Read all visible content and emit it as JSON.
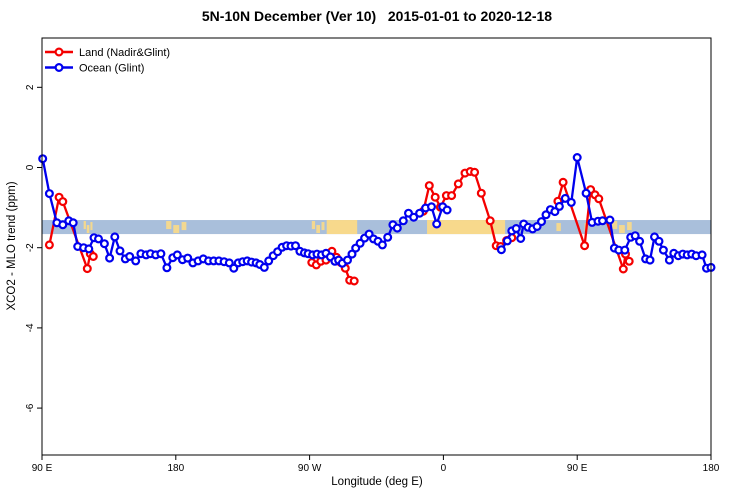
{
  "chart_data": {
    "type": "line",
    "title": "5N-10N December (Ver 10)   2015-01-01 to 2020-12-18",
    "xlabel": "Longitude (deg E)",
    "ylabel": "XCO2 - MLO trend (ppm)",
    "xlim": [
      90,
      540
    ],
    "ylim": [
      -7.17,
      3.23
    ],
    "grid": false,
    "legend_position": "top-left",
    "x_ticks": [
      {
        "pos": 90,
        "label": "90 E"
      },
      {
        "pos": 180,
        "label": "180"
      },
      {
        "pos": 270,
        "label": "90 W"
      },
      {
        "pos": 360,
        "label": "0"
      },
      {
        "pos": 450,
        "label": "90 E"
      },
      {
        "pos": 540,
        "label": "180"
      }
    ],
    "y_ticks": [
      {
        "pos": 2,
        "label": "2"
      },
      {
        "pos": 0,
        "label": "0"
      },
      {
        "pos": -2,
        "label": "-2"
      },
      {
        "pos": -4,
        "label": "-4"
      },
      {
        "pos": -6,
        "label": "-6"
      }
    ],
    "reference_band": {
      "from": -1.31,
      "to": -1.66,
      "ocean_color": "#A9BFDB",
      "land_color": "#F7D98C",
      "land_patches": [
        {
          "from": 118,
          "to": 125,
          "solid": false
        },
        {
          "from": 173.5,
          "to": 189.5,
          "solid": false
        },
        {
          "from": 271.5,
          "to": 281.5,
          "solid": false
        },
        {
          "from": 281.5,
          "to": 302,
          "solid": true
        },
        {
          "from": 349,
          "to": 401.5,
          "solid": true
        },
        {
          "from": 436,
          "to": 439,
          "solid": false
        },
        {
          "from": 455,
          "to": 457,
          "solid": false
        },
        {
          "from": 473.5,
          "to": 489,
          "solid": false
        }
      ]
    },
    "series": [
      {
        "name": "Land (Nadir&Glint)",
        "color": "#F40000",
        "segments": [
          [
            [
              95,
              -1.93
            ],
            [
              101.5,
              -0.74
            ],
            [
              104,
              -0.85
            ],
            [
              120.5,
              -2.52
            ],
            [
              122.5,
              -2.15
            ],
            [
              124.5,
              -2.22
            ]
          ],
          [
            [
              271.5,
              -2.37
            ],
            [
              274.5,
              -2.43
            ],
            [
              277.5,
              -2.34
            ],
            [
              281,
              -2.31
            ],
            [
              285,
              -2.09
            ],
            [
              288,
              -2.24
            ],
            [
              291,
              -2.37
            ],
            [
              294,
              -2.51
            ],
            [
              297,
              -2.81
            ],
            [
              300,
              -2.83
            ]
          ],
          [
            [
              346.5,
              -1.09
            ],
            [
              350.5,
              -0.45
            ],
            [
              354.5,
              -0.74
            ],
            [
              358,
              -0.99
            ],
            [
              362,
              -0.7
            ],
            [
              365.5,
              -0.7
            ],
            [
              370,
              -0.41
            ],
            [
              374.5,
              -0.14
            ],
            [
              378,
              -0.1
            ],
            [
              381,
              -0.12
            ],
            [
              385.5,
              -0.64
            ],
            [
              391.5,
              -1.33
            ],
            [
              395.5,
              -1.95
            ],
            [
              398.5,
              -1.97
            ],
            [
              402.5,
              -1.82
            ],
            [
              406,
              -1.75
            ]
          ],
          [
            [
              437,
              -0.84
            ],
            [
              440.5,
              -0.37
            ],
            [
              455,
              -1.95
            ],
            [
              459,
              -0.55
            ],
            [
              462,
              -0.68
            ],
            [
              464.5,
              -0.78
            ],
            [
              481,
              -2.53
            ],
            [
              482.5,
              -2.16
            ],
            [
              485,
              -2.34
            ]
          ]
        ]
      },
      {
        "name": "Ocean (Glint)",
        "color": "#0000EE",
        "segments": [
          [
            [
              90.5,
              0.22
            ],
            [
              95,
              -0.65
            ],
            [
              100,
              -1.38
            ],
            [
              104,
              -1.43
            ],
            [
              108,
              -1.33
            ],
            [
              111,
              -1.38
            ],
            [
              114,
              -1.97
            ],
            [
              118,
              -2.0
            ],
            [
              121.5,
              -2.03
            ],
            [
              125,
              -1.75
            ],
            [
              128,
              -1.78
            ],
            [
              132,
              -1.9
            ],
            [
              135.5,
              -2.26
            ],
            [
              139,
              -1.73
            ],
            [
              142.5,
              -2.08
            ],
            [
              146,
              -2.28
            ],
            [
              149,
              -2.22
            ],
            [
              153,
              -2.33
            ],
            [
              156.5,
              -2.15
            ],
            [
              160,
              -2.18
            ],
            [
              163,
              -2.15
            ],
            [
              166.5,
              -2.18
            ],
            [
              170,
              -2.15
            ],
            [
              174,
              -2.5
            ],
            [
              178,
              -2.25
            ],
            [
              181,
              -2.18
            ],
            [
              184.5,
              -2.3
            ],
            [
              188,
              -2.26
            ],
            [
              191.5,
              -2.38
            ],
            [
              195,
              -2.33
            ],
            [
              198.5,
              -2.28
            ],
            [
              202,
              -2.33
            ],
            [
              205.5,
              -2.33
            ],
            [
              209,
              -2.33
            ],
            [
              212.5,
              -2.35
            ],
            [
              216,
              -2.38
            ],
            [
              219,
              -2.51
            ],
            [
              222,
              -2.38
            ],
            [
              225,
              -2.35
            ],
            [
              228,
              -2.33
            ],
            [
              231,
              -2.36
            ],
            [
              234,
              -2.38
            ],
            [
              236.5,
              -2.42
            ],
            [
              239.5,
              -2.49
            ],
            [
              242.5,
              -2.33
            ],
            [
              245.5,
              -2.2
            ],
            [
              248.5,
              -2.1
            ],
            [
              251.5,
              -1.99
            ],
            [
              254.5,
              -1.95
            ],
            [
              257.5,
              -1.96
            ],
            [
              260.5,
              -1.95
            ],
            [
              263.5,
              -2.09
            ],
            [
              266.5,
              -2.13
            ],
            [
              269,
              -2.15
            ],
            [
              272,
              -2.18
            ],
            [
              275,
              -2.16
            ],
            [
              278,
              -2.18
            ],
            [
              281,
              -2.14
            ],
            [
              284,
              -2.23
            ],
            [
              287,
              -2.34
            ],
            [
              289.5,
              -2.31
            ],
            [
              292,
              -2.39
            ],
            [
              295.5,
              -2.31
            ],
            [
              298.5,
              -2.16
            ],
            [
              301,
              -2.01
            ],
            [
              304,
              -1.89
            ],
            [
              307,
              -1.76
            ],
            [
              310,
              -1.66
            ],
            [
              313,
              -1.78
            ],
            [
              316,
              -1.84
            ],
            [
              319,
              -1.93
            ],
            [
              322.5,
              -1.74
            ],
            [
              326,
              -1.43
            ],
            [
              329,
              -1.51
            ],
            [
              333,
              -1.33
            ],
            [
              336.5,
              -1.14
            ],
            [
              340,
              -1.24
            ],
            [
              344,
              -1.14
            ],
            [
              348,
              -1.01
            ],
            [
              352,
              -0.98
            ],
            [
              355.5,
              -1.41
            ],
            [
              359.5,
              -0.98
            ],
            [
              362.5,
              -1.06
            ]
          ],
          [
            [
              399,
              -2.05
            ],
            [
              403,
              -1.83
            ],
            [
              406,
              -1.58
            ],
            [
              409,
              -1.52
            ],
            [
              412,
              -1.77
            ],
            [
              414,
              -1.41
            ],
            [
              417,
              -1.49
            ],
            [
              420,
              -1.53
            ],
            [
              423,
              -1.47
            ],
            [
              426,
              -1.35
            ],
            [
              429,
              -1.18
            ],
            [
              432,
              -1.05
            ],
            [
              435,
              -1.1
            ],
            [
              438,
              -0.97
            ],
            [
              442,
              -0.77
            ],
            [
              446,
              -0.87
            ],
            [
              450,
              0.25
            ],
            [
              456,
              -0.64
            ],
            [
              460,
              -1.37
            ],
            [
              464,
              -1.34
            ],
            [
              467,
              -1.33
            ],
            [
              472,
              -1.31
            ],
            [
              475,
              -2.01
            ],
            [
              478,
              -2.06
            ],
            [
              482,
              -2.06
            ],
            [
              486,
              -1.74
            ],
            [
              489,
              -1.7
            ],
            [
              492,
              -1.84
            ],
            [
              496,
              -2.28
            ],
            [
              499,
              -2.31
            ],
            [
              502,
              -1.73
            ],
            [
              505,
              -1.84
            ],
            [
              508,
              -2.06
            ],
            [
              512,
              -2.31
            ],
            [
              515,
              -2.14
            ],
            [
              518,
              -2.2
            ],
            [
              521,
              -2.16
            ],
            [
              524,
              -2.18
            ],
            [
              527,
              -2.16
            ],
            [
              530,
              -2.2
            ],
            [
              534,
              -2.18
            ],
            [
              537,
              -2.51
            ],
            [
              540,
              -2.49
            ]
          ]
        ]
      }
    ]
  }
}
